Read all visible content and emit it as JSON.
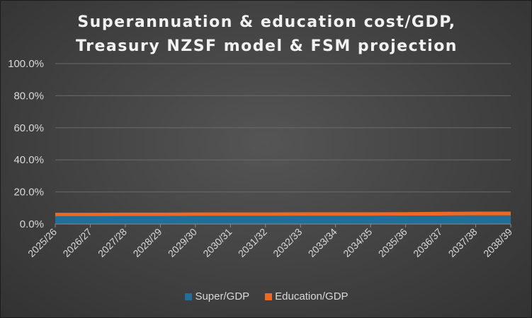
{
  "chart_data": {
    "type": "area",
    "stacked": true,
    "title_lines": [
      "Superannuation & education cost/GDP,",
      "Treasury NZSF model & FSM projection"
    ],
    "categories": [
      "2025/26",
      "2026/27",
      "2027/28",
      "2028/29",
      "2029/30",
      "2030/31",
      "2031/32",
      "2032/33",
      "2033/34",
      "2034/35",
      "2035/36",
      "2036/37",
      "2037/38",
      "2038/39"
    ],
    "series": [
      {
        "name": "Super/GDP",
        "color": "#1f6f9a",
        "values": [
          4.9,
          4.9,
          5.0,
          5.0,
          5.1,
          5.1,
          5.1,
          5.2,
          5.2,
          5.2,
          5.3,
          5.3,
          5.4,
          5.4
        ]
      },
      {
        "name": "Education/GDP",
        "color": "#ee6a24",
        "values": [
          2.1,
          2.1,
          2.1,
          2.1,
          2.1,
          2.1,
          2.1,
          2.1,
          2.1,
          2.1,
          2.1,
          2.3,
          2.3,
          2.3
        ]
      }
    ],
    "y_ticks": [
      "100.0%",
      "80.0%",
      "60.0%",
      "40.0%",
      "20.0%",
      "0.0%"
    ],
    "ylim": [
      0,
      100
    ],
    "grid": true,
    "legend_position": "bottom"
  }
}
